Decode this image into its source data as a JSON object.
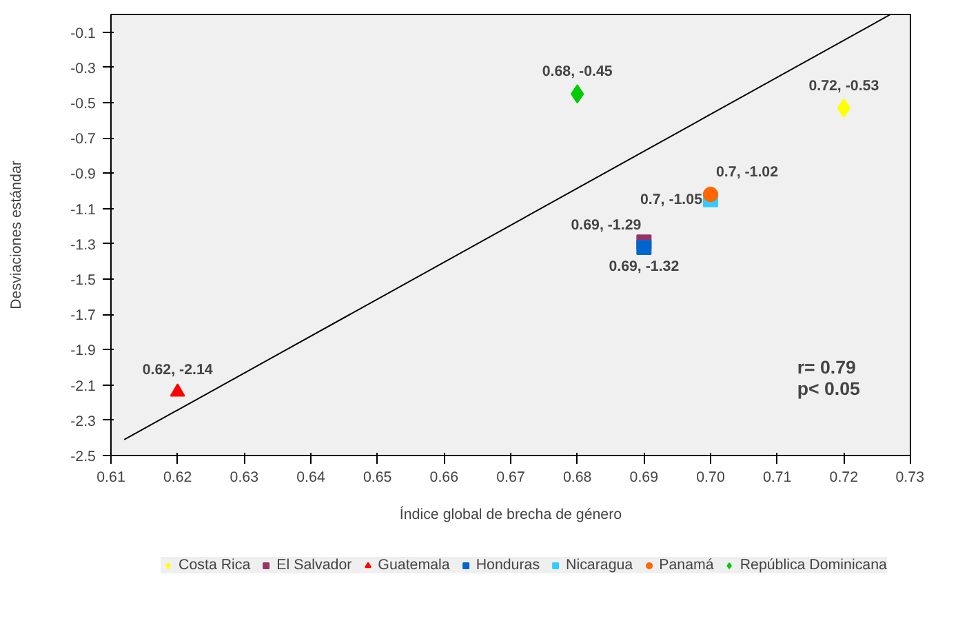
{
  "chart_data": {
    "type": "scatter",
    "xlabel": "Índice global de brecha de género",
    "ylabel": "Desviaciones estándar",
    "xlim": [
      0.61,
      0.73
    ],
    "xticks": [
      0.61,
      0.62,
      0.63,
      0.64,
      0.65,
      0.66,
      0.67,
      0.68,
      0.69,
      {
        "value": 0.7,
        "label": "0.70"
      },
      0.71,
      0.72,
      0.73
    ],
    "ylim": [
      -2.5,
      0.0
    ],
    "yticks": [
      -2.5,
      -2.3,
      -2.1,
      -1.9,
      -1.7,
      -1.5,
      -1.3,
      -1.1,
      -0.9,
      -0.7,
      -0.5,
      -0.3,
      -0.1
    ],
    "grid": false,
    "legend": "bottom",
    "series": [
      {
        "name": "Costa Rica",
        "color": "#ffff00",
        "marker": "diamond",
        "x": [
          0.72
        ],
        "values": [
          -0.53
        ],
        "value_labels": [
          "0.72, -0.53"
        ]
      },
      {
        "name": "El Salvador",
        "color": "#993366",
        "marker": "square",
        "x": [
          0.69
        ],
        "values": [
          -1.29
        ],
        "value_labels": [
          "0.69, -1.29"
        ]
      },
      {
        "name": "Guatemala",
        "color": "#ff0000",
        "marker": "triangle",
        "x": [
          0.62
        ],
        "values": [
          -2.14
        ],
        "value_labels": [
          "0.62, -2.14"
        ]
      },
      {
        "name": "Honduras",
        "color": "#0066cc",
        "marker": "square",
        "x": [
          0.69
        ],
        "values": [
          -1.32
        ],
        "value_labels": [
          "0.69, -1.32"
        ]
      },
      {
        "name": "Nicaragua",
        "color": "#33ccff",
        "marker": "square",
        "x": [
          0.7
        ],
        "values": [
          -1.05
        ],
        "value_labels": [
          "0.7, -1.05"
        ]
      },
      {
        "name": "Panamá",
        "color": "#ff6600",
        "marker": "circle",
        "x": [
          0.7
        ],
        "values": [
          -1.02
        ],
        "value_labels": [
          "0.7, -1.02"
        ]
      },
      {
        "name": "República Dominicana",
        "color": "#00cc00",
        "marker": "diamond",
        "x": [
          0.68
        ],
        "values": [
          -0.45
        ],
        "value_labels": [
          "0.68, -0.45"
        ]
      },
      {
        "type": "line",
        "color": "#000000",
        "x": [
          0.612,
          0.727
        ],
        "values": [
          -2.41,
          0.0
        ]
      }
    ],
    "annotations": [
      "r= 0.79",
      "p< 0.05"
    ]
  }
}
